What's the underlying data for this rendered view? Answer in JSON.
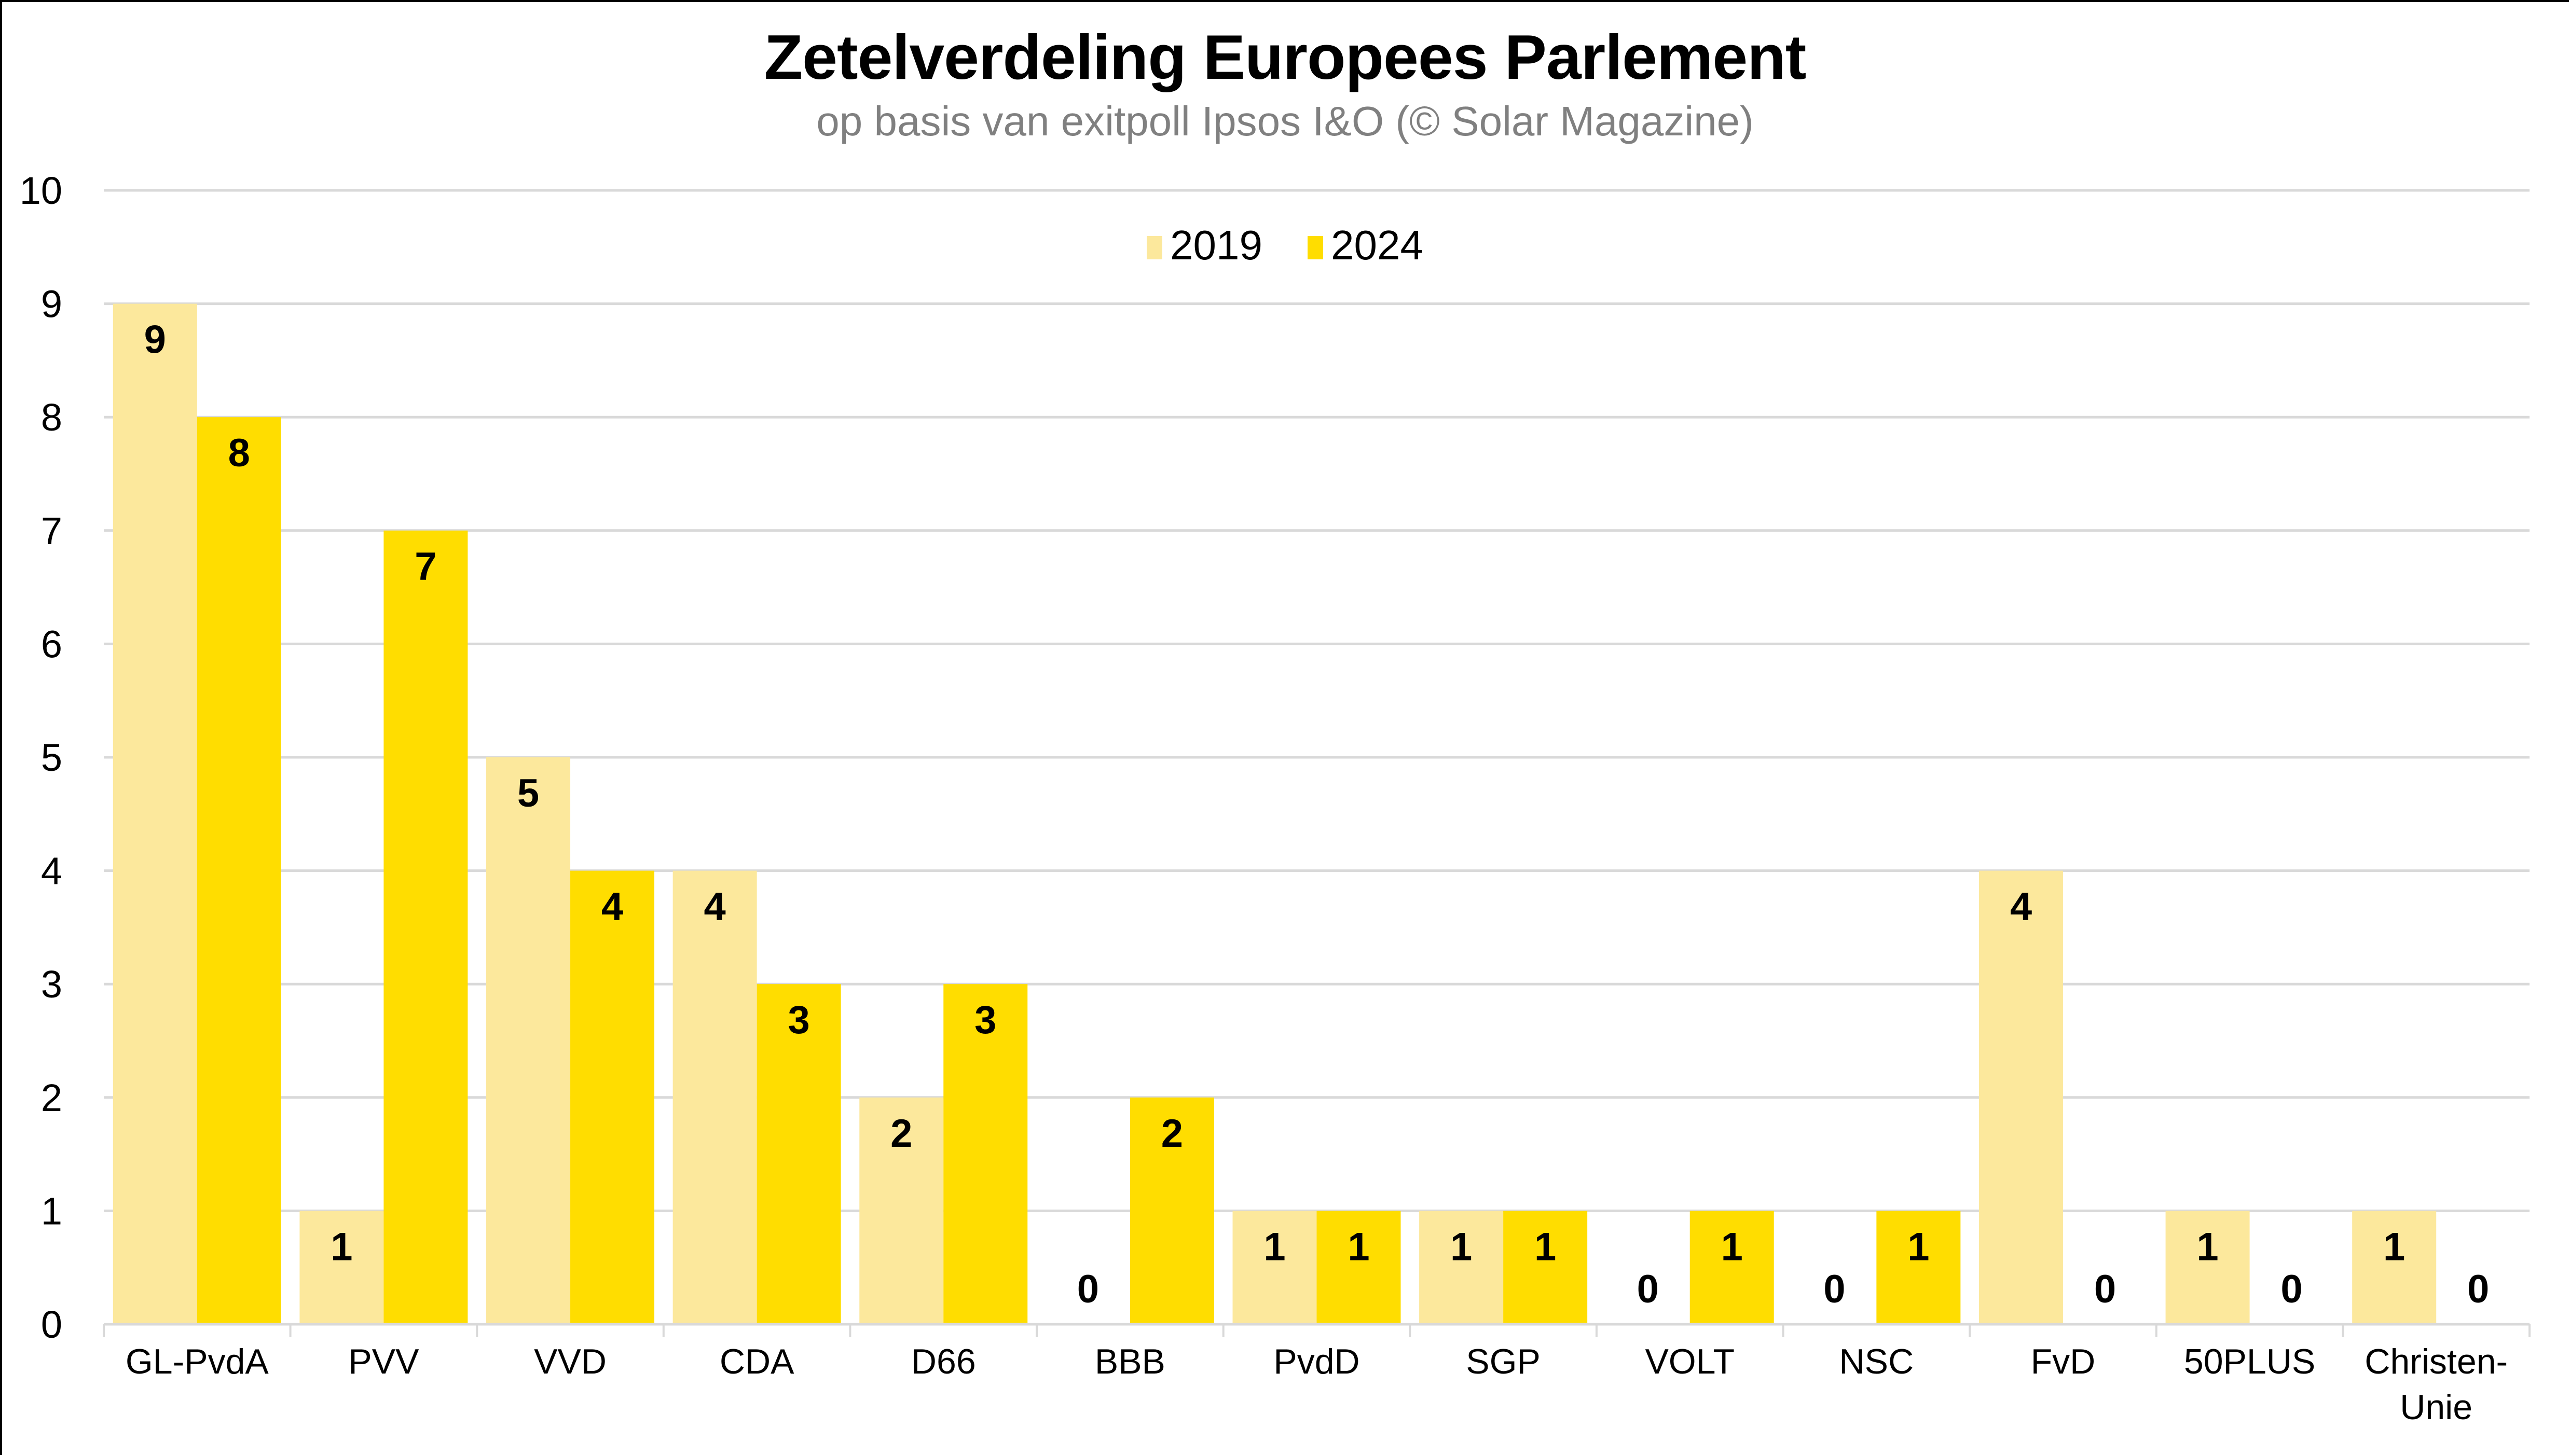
{
  "chart_data": {
    "type": "bar",
    "title": "Zetelverdeling Europees Parlement",
    "subtitle": "op basis van exitpoll Ipsos I&O (© Solar Magazine)",
    "xlabel": "",
    "ylabel": "",
    "ylim": [
      0,
      10
    ],
    "yticks": [
      0,
      1,
      2,
      3,
      4,
      5,
      6,
      7,
      8,
      9,
      10
    ],
    "grid": true,
    "legend_position": "top-center",
    "categories": [
      "GL-PvdA",
      "PVV",
      "VVD",
      "CDA",
      "D66",
      "BBB",
      "PvdD",
      "SGP",
      "VOLT",
      "NSC",
      "FvD",
      "50PLUS",
      "Christen-\nUnie"
    ],
    "series": [
      {
        "name": "2019",
        "color": "#FCE89C",
        "values": [
          9,
          1,
          5,
          4,
          2,
          0,
          1,
          1,
          0,
          0,
          4,
          1,
          1
        ]
      },
      {
        "name": "2024",
        "color": "#FFDD00",
        "values": [
          8,
          7,
          4,
          3,
          3,
          2,
          1,
          1,
          1,
          1,
          0,
          0,
          0
        ]
      }
    ]
  }
}
